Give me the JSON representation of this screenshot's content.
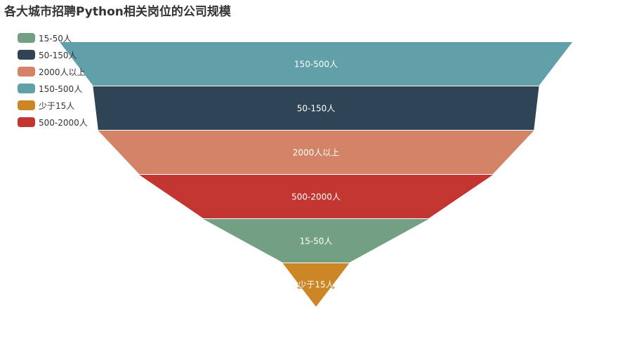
{
  "chart_data": {
    "type": "funnel",
    "title": "各大城市招聘Python相关岗位的公司规模",
    "legend": {
      "position": "top-left",
      "items": [
        {
          "label": "15-50人",
          "color": "#73a085"
        },
        {
          "label": "50-150人",
          "color": "#2f4454"
        },
        {
          "label": "2000人以上",
          "color": "#d48466"
        },
        {
          "label": "150-500人",
          "color": "#62a0a9"
        },
        {
          "label": "少于15人",
          "color": "#cc8626"
        },
        {
          "label": "500-2000人",
          "color": "#c23531"
        }
      ]
    },
    "segments": [
      {
        "label": "150-500人",
        "value": 100,
        "color": "#62a0a9"
      },
      {
        "label": "50-150人",
        "value": 87,
        "color": "#2f4454"
      },
      {
        "label": "2000人以上",
        "value": 85,
        "color": "#d48466"
      },
      {
        "label": "500-2000人",
        "value": 69,
        "color": "#c23531"
      },
      {
        "label": "15-50人",
        "value": 44,
        "color": "#73a085"
      },
      {
        "label": "少于15人",
        "value": 13,
        "color": "#cc8626"
      }
    ]
  }
}
